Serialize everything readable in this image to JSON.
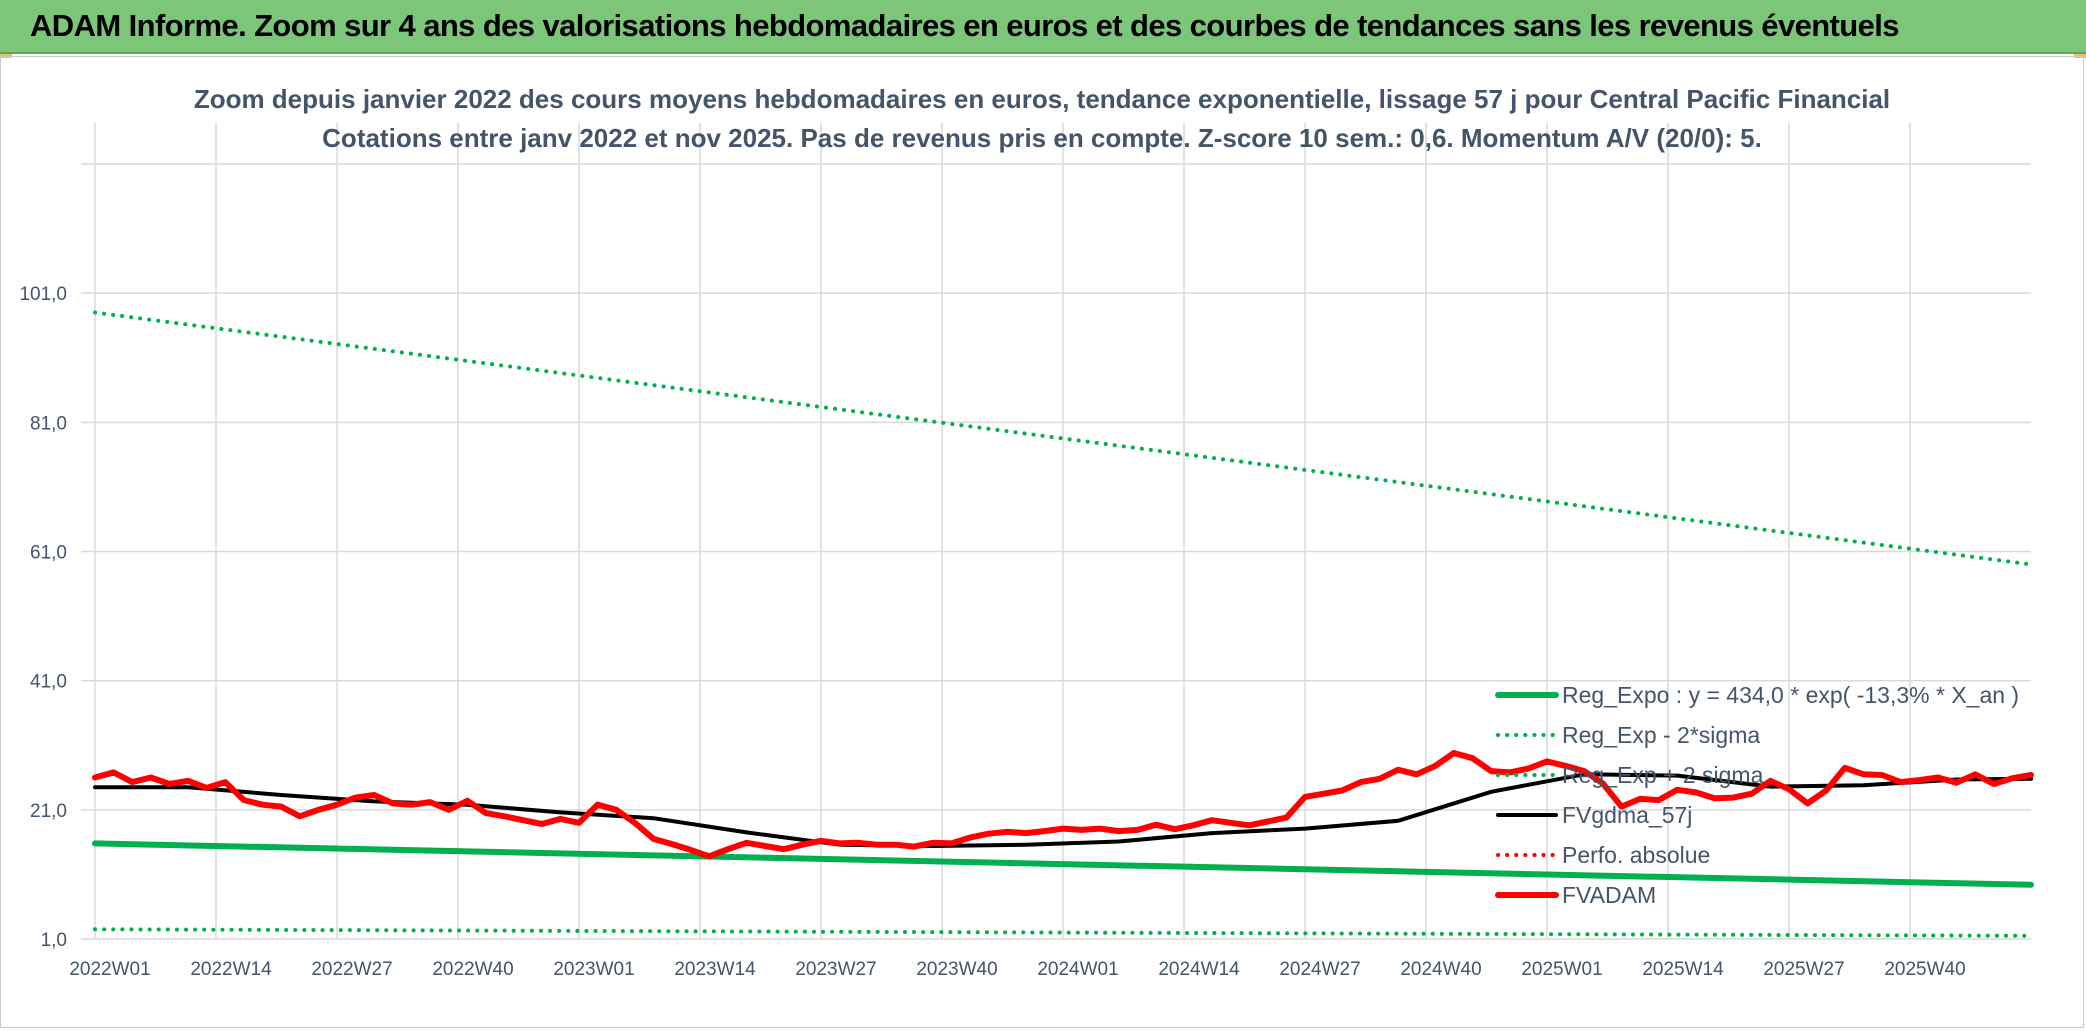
{
  "banner": {
    "title": "ADAM Informe. Zoom sur 4 ans des valorisations hebdomadaires en euros et des courbes de tendances sans les revenus éventuels",
    "background": "#7cc67a"
  },
  "chart_data": {
    "type": "line",
    "title": "Zoom depuis janvier 2022 des cours moyens hebdomadaires en euros, tendance exponentielle, lissage 57 j pour Central Pacific Financial",
    "subtitle": "Cotations entre janv 2022 et nov 2025. Pas de revenus pris en compte. Z-score 10 sem.: 0,6. Momentum A/V (20/0): 5.",
    "xlabel": "",
    "ylabel": "",
    "x_ticks": [
      "2022W01",
      "2022W14",
      "2022W27",
      "2022W40",
      "2023W01",
      "2023W14",
      "2023W27",
      "2023W40",
      "2024W01",
      "2024W14",
      "2024W27",
      "2024W40",
      "2025W01",
      "2025W14",
      "2025W27",
      "2025W40"
    ],
    "y_ticks": [
      "1,0",
      "21,0",
      "41,0",
      "61,0",
      "81,0",
      "101,0"
    ],
    "ylim": [
      1,
      121
    ],
    "x_range_weeks": [
      0,
      208
    ],
    "grid": true,
    "legend_position": "bottom-right",
    "series": [
      {
        "name": "Reg_Expo : y = 434,0 * exp( -13,3% *  X_an )",
        "color": "#00b050",
        "style": "solid",
        "width": 6,
        "x": [
          0,
          208
        ],
        "y": [
          15.8,
          9.4
        ]
      },
      {
        "name": "Reg_Exp - 2*sigma",
        "color": "#00b050",
        "style": "dotted",
        "width": 4,
        "x": [
          0,
          208
        ],
        "y": [
          2.5,
          1.5
        ]
      },
      {
        "name": "Reg_Exp + 2 sigma",
        "color": "#00b050",
        "style": "dotted",
        "width": 4,
        "x": [
          0,
          208
        ],
        "y": [
          98.0,
          59.0
        ]
      },
      {
        "name": "FVgdma_57j",
        "color": "#000000",
        "style": "solid",
        "width": 4,
        "x": [
          0,
          10,
          20,
          30,
          40,
          50,
          60,
          70,
          80,
          90,
          100,
          110,
          120,
          130,
          140,
          150,
          160,
          170,
          180,
          190,
          200,
          208
        ],
        "y": [
          24.5,
          24.5,
          23.3,
          22.3,
          21.8,
          20.6,
          19.7,
          17.5,
          15.6,
          15.4,
          15.6,
          16.1,
          17.4,
          18.1,
          19.3,
          23.8,
          26.5,
          26.3,
          24.6,
          24.8,
          25.7,
          25.8
        ]
      },
      {
        "name": "Perfo. absolue",
        "color": "#ff0000",
        "style": "dotted",
        "width": 4,
        "x": [],
        "y": []
      },
      {
        "name": "FVADAM",
        "color": "#ff0000",
        "style": "solid",
        "width": 6,
        "x": [
          0,
          2,
          4,
          6,
          8,
          10,
          12,
          14,
          16,
          18,
          20,
          22,
          24,
          26,
          28,
          30,
          32,
          34,
          36,
          38,
          40,
          42,
          44,
          46,
          48,
          50,
          52,
          54,
          56,
          58,
          60,
          62,
          64,
          66,
          68,
          70,
          72,
          74,
          76,
          78,
          80,
          82,
          84,
          86,
          88,
          90,
          92,
          94,
          96,
          98,
          100,
          102,
          104,
          106,
          108,
          110,
          112,
          114,
          116,
          118,
          120,
          122,
          124,
          126,
          128,
          130,
          132,
          134,
          136,
          138,
          140,
          142,
          144,
          146,
          148,
          150,
          152,
          154,
          156,
          158,
          160,
          162,
          164,
          166,
          168,
          170,
          172,
          174,
          176,
          178,
          180,
          182,
          184,
          186,
          188,
          190,
          192,
          194,
          196,
          198,
          200,
          202,
          204,
          206,
          208
        ],
        "y": [
          26.0,
          26.8,
          25.3,
          26.0,
          25.0,
          25.5,
          24.4,
          25.3,
          22.5,
          21.8,
          21.5,
          20.0,
          21.0,
          21.8,
          22.9,
          23.3,
          22.0,
          21.8,
          22.2,
          21.0,
          22.4,
          20.5,
          20.0,
          19.4,
          18.8,
          19.6,
          19.0,
          21.8,
          21.0,
          19.0,
          16.5,
          15.7,
          14.8,
          13.8,
          14.9,
          15.9,
          15.4,
          14.9,
          15.6,
          16.2,
          15.8,
          15.9,
          15.6,
          15.6,
          15.3,
          15.9,
          15.8,
          16.7,
          17.3,
          17.6,
          17.4,
          17.7,
          18.1,
          17.9,
          18.1,
          17.7,
          17.9,
          18.7,
          18.0,
          18.6,
          19.4,
          19.0,
          18.6,
          19.2,
          19.8,
          23.0,
          23.5,
          24.0,
          25.3,
          25.8,
          27.2,
          26.5,
          27.8,
          29.8,
          29.0,
          27.0,
          26.8,
          27.4,
          28.5,
          27.8,
          27.0,
          25.1,
          21.5,
          22.7,
          22.5,
          24.1,
          23.7,
          22.8,
          22.9,
          23.5,
          25.5,
          24.2,
          22.0,
          24.0,
          27.5,
          26.5,
          26.4,
          25.3,
          25.6,
          26.0,
          25.2,
          26.5,
          25.0,
          25.9,
          26.4
        ]
      }
    ]
  }
}
